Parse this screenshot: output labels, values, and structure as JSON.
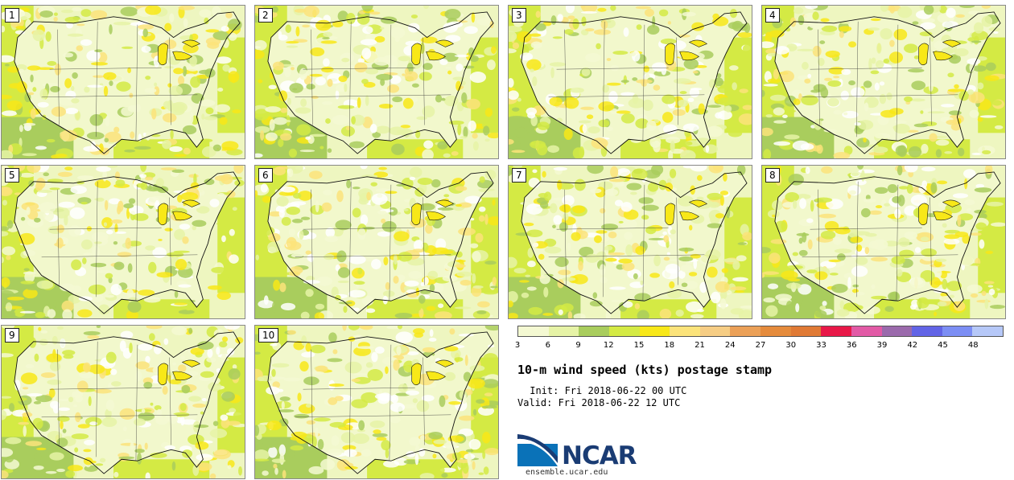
{
  "panels": [
    {
      "member": "1"
    },
    {
      "member": "2"
    },
    {
      "member": "3"
    },
    {
      "member": "4"
    },
    {
      "member": "5"
    },
    {
      "member": "6"
    },
    {
      "member": "7"
    },
    {
      "member": "8"
    },
    {
      "member": "9"
    },
    {
      "member": "10"
    }
  ],
  "colorbar": {
    "colors": [
      "#f4f9d2",
      "#e6f3a6",
      "#a9cd5d",
      "#d4ea44",
      "#f8e818",
      "#fbe37a",
      "#f6cd84",
      "#eba057",
      "#e58b3c",
      "#e07a35",
      "#e81848",
      "#e25aa6",
      "#9b6aac",
      "#6264e6",
      "#7c8ef4",
      "#b6c8f8"
    ],
    "ticks": [
      "3",
      "6",
      "9",
      "12",
      "15",
      "18",
      "21",
      "24",
      "27",
      "30",
      "33",
      "36",
      "39",
      "42",
      "45",
      "48"
    ]
  },
  "title": "10-m wind speed (kts) postage stamp",
  "init": "Init: Fri 2018-06-22 00 UTC",
  "valid": "Valid: Fri 2018-06-22 12 UTC",
  "logo": {
    "text": "NCAR",
    "website": "ensemble.ucar.edu"
  }
}
